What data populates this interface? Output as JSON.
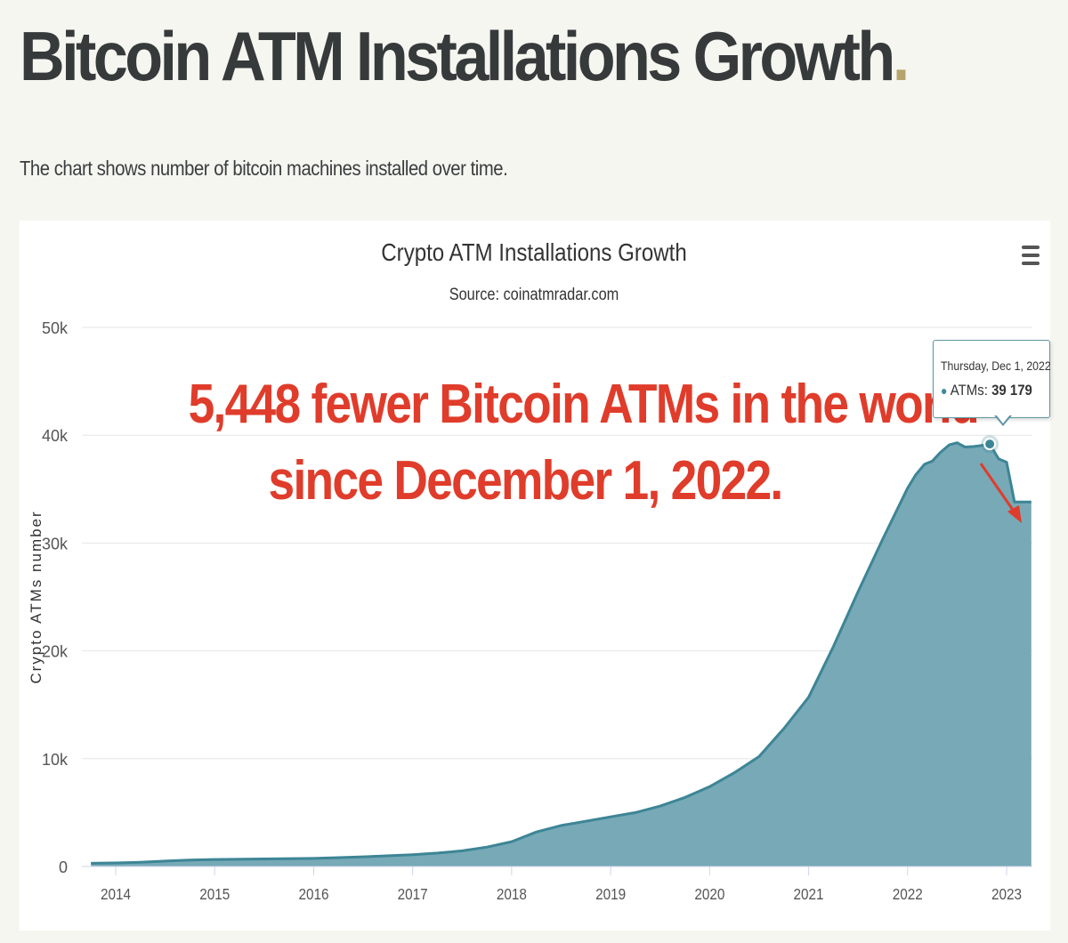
{
  "page": {
    "title": "Bitcoin ATM Installations Growth",
    "title_dot": ".",
    "subtitle": "The chart shows number of bitcoin machines installed over time."
  },
  "annotation": {
    "line1": "5,448 fewer Bitcoin ATMs in the world",
    "line2": "since December 1, 2022.",
    "color": "#e03c2b"
  },
  "tooltip": {
    "date": "Thursday, Dec 1, 2022",
    "series_label": "ATMs:",
    "value": "39 179",
    "marker": "●"
  },
  "menu": {
    "icon": "hamburger-menu-icon"
  },
  "colors": {
    "area_fill": "#77a9b6",
    "area_line": "#3d8596",
    "grid": "#e6e6e6"
  },
  "chart_data": {
    "type": "area",
    "title": "Crypto ATM Installations Growth",
    "subtitle": "Source: coinatmradar.com",
    "ylabel": "Crypto ATMs number",
    "xlabel": "",
    "ylim": [
      0,
      50000
    ],
    "y_ticks": [
      "0",
      "10k",
      "20k",
      "30k",
      "40k",
      "50k"
    ],
    "x_ticks": [
      "2014",
      "2015",
      "2016",
      "2017",
      "2018",
      "2019",
      "2020",
      "2021",
      "2022",
      "2023"
    ],
    "grid": true,
    "legend": "none",
    "series": [
      {
        "x": [
          2013.75,
          2014.0,
          2014.25,
          2014.5,
          2014.75,
          2015.0,
          2015.5,
          2016.0,
          2016.5,
          2017.0,
          2017.25,
          2017.5,
          2017.75,
          2018.0,
          2018.25,
          2018.5,
          2018.75,
          2019.0,
          2019.25,
          2019.5,
          2019.75,
          2020.0,
          2020.25,
          2020.5,
          2020.75,
          2021.0,
          2021.25,
          2021.5,
          2021.75,
          2022.0,
          2022.08,
          2022.17,
          2022.25,
          2022.33,
          2022.42,
          2022.5,
          2022.58,
          2022.67,
          2022.75,
          2022.83,
          2022.92,
          2023.0,
          2023.08,
          2023.17,
          2023.25
        ],
        "y": [
          300,
          330,
          400,
          500,
          600,
          650,
          700,
          750,
          900,
          1100,
          1250,
          1450,
          1800,
          2300,
          3200,
          3800,
          4200,
          4600,
          5000,
          5600,
          6400,
          7400,
          8700,
          10200,
          12800,
          15700,
          20400,
          25500,
          30400,
          35100,
          36300,
          37300,
          37600,
          38400,
          39100,
          39300,
          38900,
          38950,
          39050,
          39179,
          37800,
          37500,
          33800,
          33800,
          33800
        ]
      }
    ]
  }
}
